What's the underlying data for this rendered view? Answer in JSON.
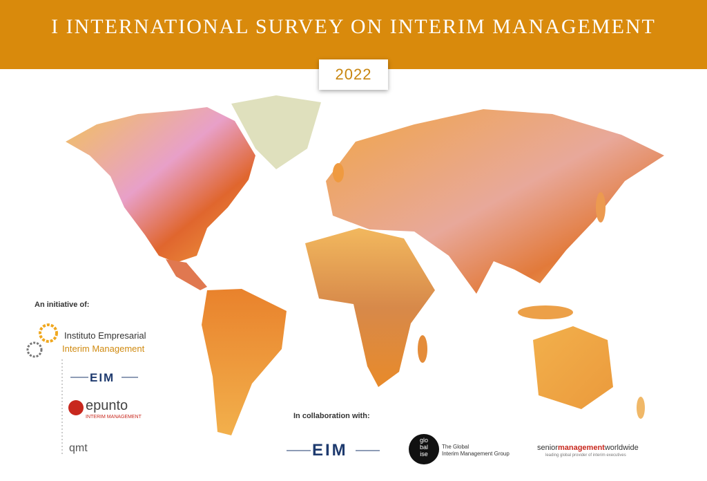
{
  "header": {
    "title": "I INTERNATIONAL SURVEY ON INTERIM MANAGEMENT",
    "year": "2022"
  },
  "initiative": {
    "label": "An initiative of:",
    "logos": [
      {
        "line1": "Instituto Empresarial",
        "line2": "Interim Management"
      },
      {
        "name": "EIM"
      },
      {
        "name": "epunto",
        "subtitle": "INTERIM MANAGEMENT"
      },
      {
        "name": "qmt"
      }
    ]
  },
  "collaboration": {
    "label": "In collaboration with:",
    "logos": [
      {
        "name": "EIM"
      },
      {
        "badge": [
          "glo",
          "bal",
          "ise"
        ],
        "line1": "The Global",
        "line2": "Interim Management Group"
      },
      {
        "part1": "senior",
        "part2": "management",
        "part3": "worldwide",
        "tagline": "leading global provider of interim executives"
      }
    ]
  }
}
